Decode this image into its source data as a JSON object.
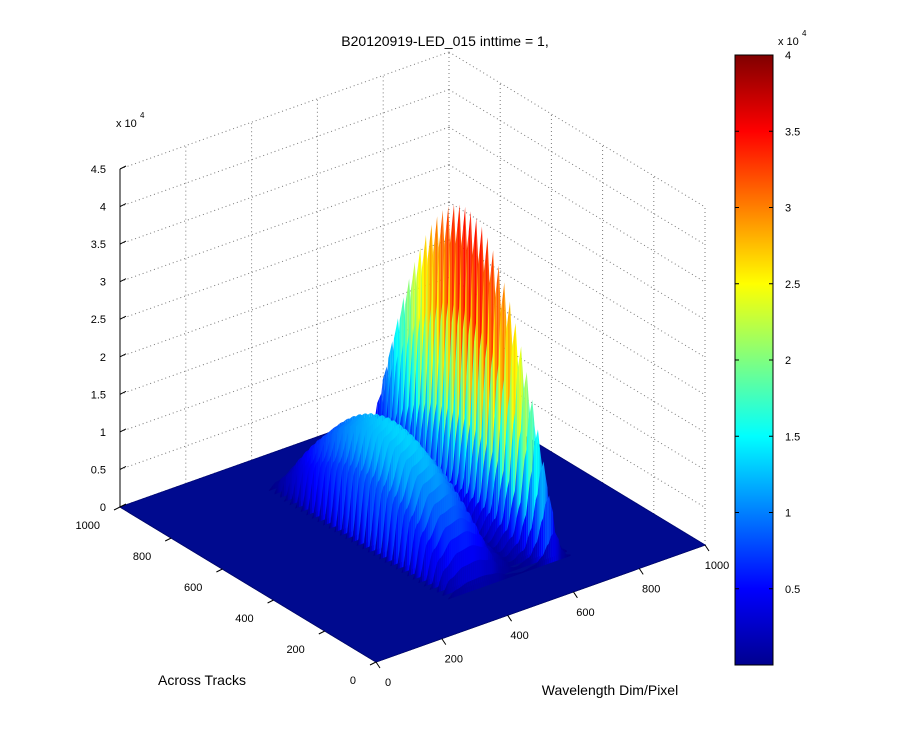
{
  "chart_data": {
    "type": "surface",
    "title": "B20120919-LED_015 inttime = 1,",
    "xlabel": "Wavelength Dim/Pixel",
    "ylabel": "Across Tracks",
    "zlabel": "",
    "xlim": [
      0,
      1000
    ],
    "ylim": [
      0,
      1000
    ],
    "zlim": [
      0,
      45000
    ],
    "x_ticks": [
      "0",
      "200",
      "400",
      "600",
      "800",
      "1000"
    ],
    "y_ticks": [
      "0",
      "200",
      "400",
      "600",
      "800",
      "1000"
    ],
    "z_ticks": [
      "0",
      "0.5",
      "1",
      "1.5",
      "2",
      "2.5",
      "3",
      "3.5",
      "4",
      "4.5"
    ],
    "z_multiplier": "x 10",
    "z_multiplier_exp": "4",
    "grid": true,
    "colormap": "jet",
    "colorbar": {
      "range": [
        0,
        40000
      ],
      "ticks": [
        "0.5",
        "1",
        "1.5",
        "2",
        "2.5",
        "3",
        "3.5",
        "4"
      ],
      "multiplier": "x 10",
      "multiplier_exp": "4"
    },
    "surface_peaks": [
      {
        "label": "broad band",
        "x_range": [
          330,
          560
        ],
        "y_range": [
          100,
          850
        ],
        "z_max": 15000
      },
      {
        "label": "narrow peak",
        "x_center": 660,
        "y_range": [
          150,
          850
        ],
        "z_max": 40000
      }
    ],
    "spectrum_profile": {
      "x": [
        330,
        360,
        400,
        440,
        480,
        520,
        560,
        600,
        620,
        640,
        650,
        660,
        670,
        680,
        700,
        720
      ],
      "z": [
        0,
        9000,
        14000,
        15000,
        12500,
        5000,
        2000,
        5000,
        12000,
        26000,
        36000,
        40000,
        30000,
        12000,
        3000,
        0
      ]
    }
  }
}
